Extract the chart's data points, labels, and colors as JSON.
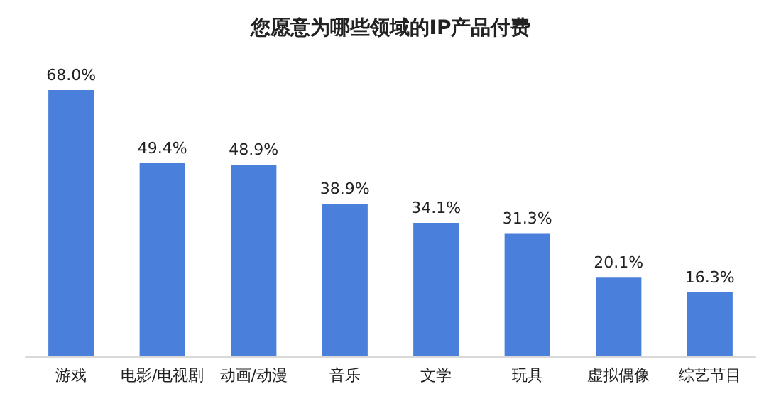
{
  "chart_data": {
    "type": "bar",
    "title": "您愿意为哪些领域的IP产品付费",
    "categories": [
      "游戏",
      "电影/电视剧",
      "动画/动漫",
      "音乐",
      "文学",
      "玩具",
      "虚拟偶像",
      "综艺节目"
    ],
    "values": [
      68.0,
      49.4,
      48.9,
      38.9,
      34.1,
      31.3,
      20.1,
      16.3
    ],
    "value_labels": [
      "68.0%",
      "49.4%",
      "48.9%",
      "38.9%",
      "34.1%",
      "31.3%",
      "20.1%",
      "16.3%"
    ],
    "color": "#4a7fdb"
  }
}
